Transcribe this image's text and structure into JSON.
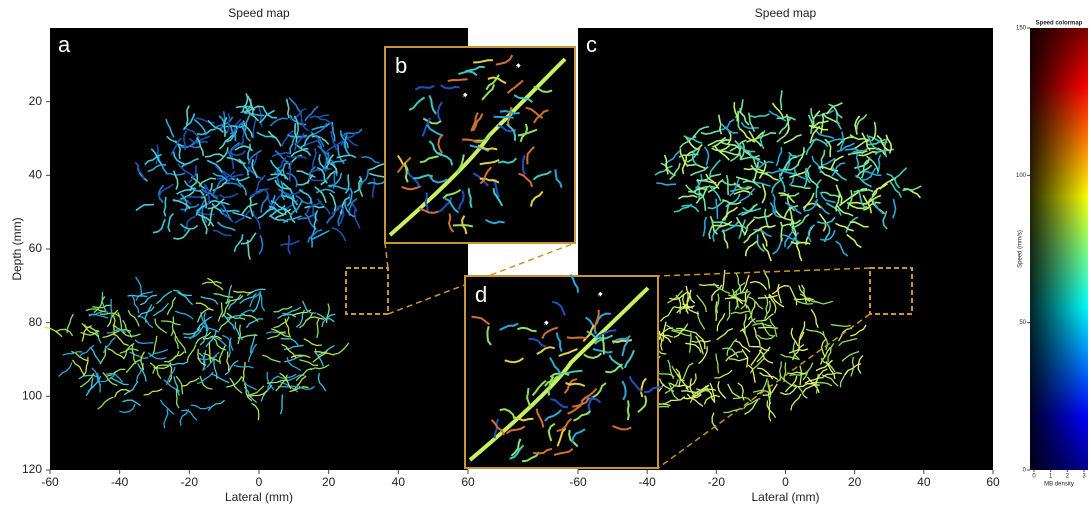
{
  "panels": [
    {
      "title": "Speed map",
      "label": "a",
      "xlabel": "Lateral (mm)",
      "ylabel": "Depth (mm)",
      "xlim": [
        -60,
        60
      ],
      "ylim": [
        0,
        120
      ],
      "xticks": [
        -60,
        -40,
        -20,
        0,
        20,
        40,
        60
      ],
      "yticks": [
        20,
        40,
        60,
        80,
        100,
        120
      ]
    },
    {
      "title": "Speed map",
      "label": "c",
      "xlabel": "Lateral (mm)",
      "xlim": [
        -60,
        60
      ],
      "xticks": [
        -60,
        -40,
        -20,
        0,
        20,
        40,
        60
      ]
    }
  ],
  "insets": [
    {
      "label": "b"
    },
    {
      "label": "d"
    }
  ],
  "colorbar": {
    "title": "Speed colormap",
    "label": "Speed (mm/s)",
    "ylim": [
      0,
      150
    ],
    "yticks": [
      0,
      50,
      100,
      150
    ],
    "xlabel": "MB density",
    "xlim": [
      0,
      3
    ],
    "xticks": [
      0,
      1,
      2,
      3
    ]
  }
}
